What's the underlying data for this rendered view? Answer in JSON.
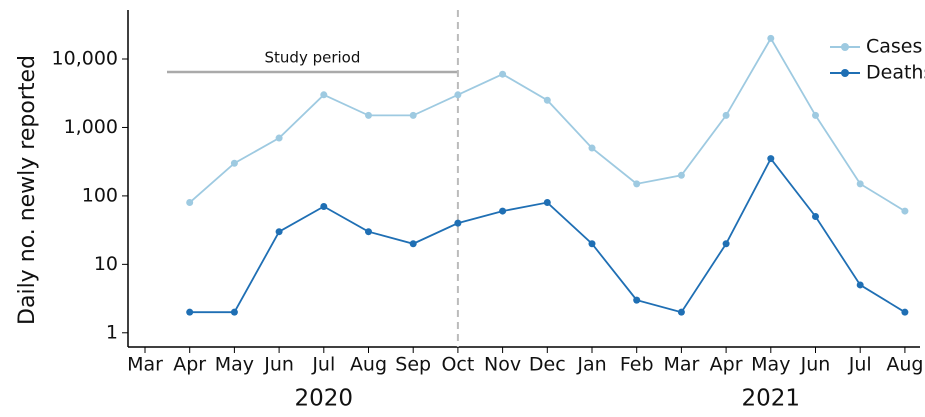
{
  "chart_data": {
    "type": "line",
    "y_label": "Daily no. newly reported",
    "log_scale": true,
    "ylim": [
      0.62,
      52000
    ],
    "yticks": [
      1,
      10,
      100,
      {
        "value": 1000,
        "label": "1,000"
      },
      {
        "value": 10000,
        "label": "10,000"
      }
    ],
    "x": [
      "2020-03",
      "2020-04",
      "2020-05",
      "2020-06",
      "2020-07",
      "2020-08",
      "2020-09",
      "2020-10",
      "2020-11",
      "2020-12",
      "2021-01",
      "2021-02",
      "2021-03",
      "2021-04",
      "2021-05",
      "2021-06",
      "2021-07",
      "2021-08"
    ],
    "xticks": [
      {
        "value": "2020-03",
        "label": "Mar"
      },
      {
        "value": "2020-04",
        "label": "Apr"
      },
      {
        "value": "2020-05",
        "label": "May"
      },
      {
        "value": "2020-06",
        "label": "Jun"
      },
      {
        "value": "2020-07",
        "label": "Jul"
      },
      {
        "value": "2020-08",
        "label": "Aug"
      },
      {
        "value": "2020-09",
        "label": "Sep"
      },
      {
        "value": "2020-10",
        "label": "Oct"
      },
      {
        "value": "2020-11",
        "label": "Nov"
      },
      {
        "value": "2020-12",
        "label": "Dec"
      },
      {
        "value": "2021-01",
        "label": "Jan"
      },
      {
        "value": "2021-02",
        "label": "Feb"
      },
      {
        "value": "2021-03",
        "label": "Mar"
      },
      {
        "value": "2021-04",
        "label": "Apr"
      },
      {
        "value": "2021-05",
        "label": "May"
      },
      {
        "value": "2021-06",
        "label": "Jun"
      },
      {
        "value": "2021-07",
        "label": "Jul"
      },
      {
        "value": "2021-08",
        "label": "Aug"
      }
    ],
    "year_labels": [
      {
        "value": "2020-07",
        "label": "2020"
      },
      {
        "value": "2021-05",
        "label": "2021"
      }
    ],
    "study_period": {
      "label": "Study period",
      "start": "2020-03",
      "end": "2020-10"
    },
    "vline": "2020-10",
    "legend_position": "top-right",
    "series": [
      {
        "name": "Cases",
        "color": "#9ecae1",
        "values": [
          null,
          80,
          300,
          700,
          3000,
          1500,
          1500,
          3000,
          6000,
          2500,
          500,
          150,
          200,
          1500,
          20000,
          1500,
          150,
          60
        ]
      },
      {
        "name": "Deaths",
        "color": "#1f6fb4",
        "values": [
          null,
          2,
          2,
          30,
          70,
          30,
          20,
          40,
          60,
          80,
          20,
          3,
          2,
          20,
          350,
          50,
          5,
          2
        ]
      }
    ]
  }
}
